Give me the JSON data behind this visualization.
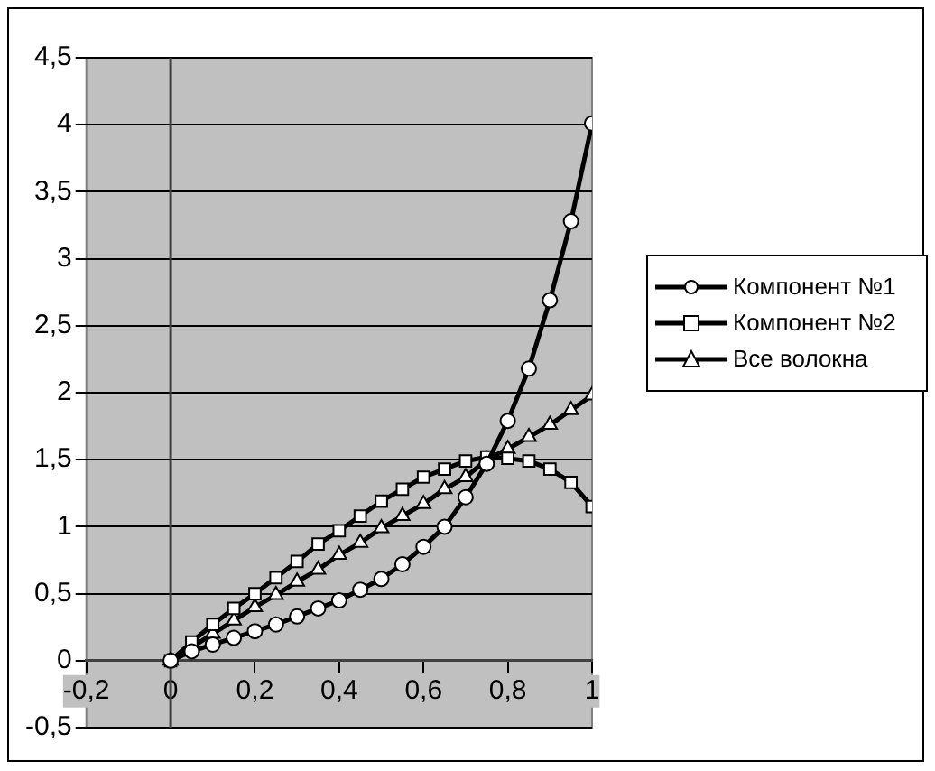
{
  "chart_data": {
    "type": "line",
    "x": [
      0,
      0.05,
      0.1,
      0.15,
      0.2,
      0.25,
      0.3,
      0.35,
      0.4,
      0.45,
      0.5,
      0.55,
      0.6,
      0.65,
      0.7,
      0.75,
      0.8,
      0.85,
      0.9,
      0.95,
      1
    ],
    "series": [
      {
        "name": "Компонент №1",
        "color": "#000000",
        "marker": "circle",
        "values": [
          0,
          0.07,
          0.12,
          0.17,
          0.22,
          0.27,
          0.33,
          0.39,
          0.45,
          0.53,
          0.61,
          0.72,
          0.85,
          1.0,
          1.22,
          1.47,
          1.79,
          2.18,
          2.69,
          3.28,
          4.01
        ]
      },
      {
        "name": "Компонент №2",
        "color": "#000000",
        "marker": "square",
        "values": [
          0,
          0.14,
          0.27,
          0.39,
          0.5,
          0.62,
          0.74,
          0.87,
          0.97,
          1.08,
          1.19,
          1.28,
          1.37,
          1.43,
          1.49,
          1.52,
          1.51,
          1.49,
          1.43,
          1.33,
          1.15
        ]
      },
      {
        "name": "Все волокна",
        "color": "#000000",
        "marker": "triangle",
        "values": [
          0,
          0.1,
          0.2,
          0.3,
          0.4,
          0.49,
          0.59,
          0.68,
          0.79,
          0.88,
          0.99,
          1.08,
          1.17,
          1.28,
          1.37,
          1.5,
          1.58,
          1.67,
          1.76,
          1.87,
          1.98
        ]
      }
    ],
    "xlim": [
      -0.2,
      1
    ],
    "xticks": [
      {
        "value": -0.2,
        "label": "-0,2"
      },
      0,
      {
        "value": 0.2,
        "label": "0,2"
      },
      {
        "value": 0.4,
        "label": "0,4"
      },
      {
        "value": 0.6,
        "label": "0,6"
      },
      {
        "value": 0.8,
        "label": "0,8"
      },
      1
    ],
    "ylim": [
      -0.5,
      4.5
    ],
    "yticks": [
      {
        "value": -0.5,
        "label": "-0,5"
      },
      0,
      {
        "value": 0.5,
        "label": "0,5"
      },
      1,
      {
        "value": 1.5,
        "label": "1,5"
      },
      2,
      {
        "value": 2.5,
        "label": "2,5"
      },
      3,
      {
        "value": 3.5,
        "label": "3,5"
      },
      4,
      {
        "value": 4.5,
        "label": "4,5"
      }
    ],
    "grid": "y",
    "legend": "right",
    "line_style": "solid"
  }
}
